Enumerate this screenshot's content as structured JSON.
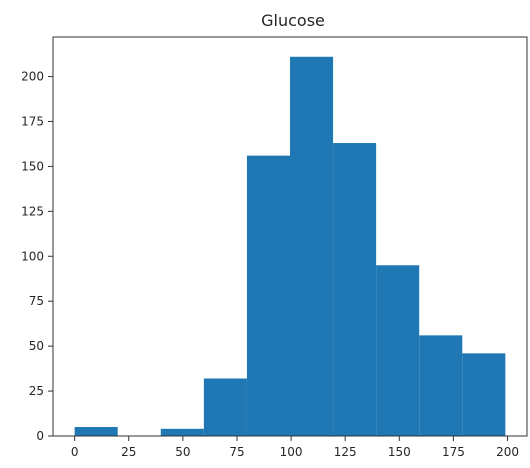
{
  "chart_data": {
    "type": "bar",
    "title": "Glucose",
    "xlabel": "",
    "ylabel": "",
    "bin_edges": [
      0,
      19.9,
      39.8,
      59.7,
      79.6,
      99.5,
      119.4,
      139.3,
      159.2,
      179.1,
      199.0
    ],
    "values": [
      5,
      0,
      4,
      32,
      156,
      211,
      163,
      95,
      56,
      46
    ],
    "xlim": [
      -10,
      209
    ],
    "ylim": [
      0,
      222
    ],
    "xticks": [
      0,
      25,
      50,
      75,
      100,
      125,
      150,
      175,
      200
    ],
    "yticks": [
      0,
      25,
      50,
      75,
      100,
      125,
      150,
      175,
      200
    ],
    "grid": false,
    "colors": {
      "bar": "#1f77b4",
      "axis": "#333333",
      "text": "#262626"
    }
  }
}
